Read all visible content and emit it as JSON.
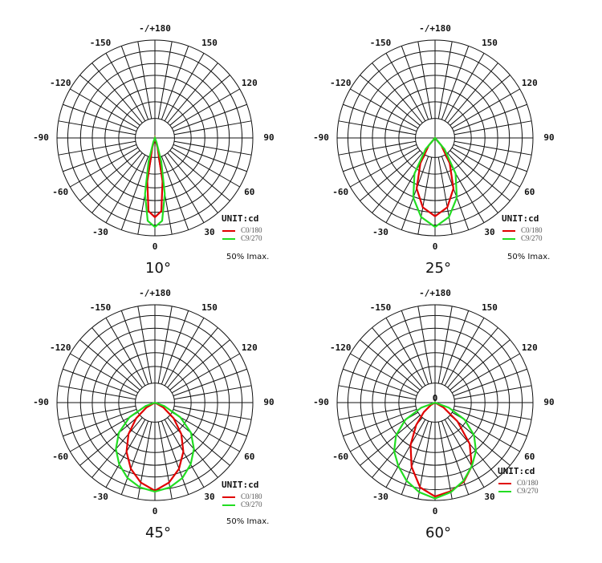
{
  "chart_data": [
    {
      "type": "polar",
      "caption": "10°",
      "unit_label": "UNIT:cd",
      "note": "50% Imax.",
      "angle_ticks": [
        {
          "value": 180,
          "label": "-/+180"
        },
        150,
        120,
        90,
        60,
        30,
        0,
        -30,
        -60,
        -90,
        -120,
        -150
      ],
      "rlim": [
        0,
        100
      ],
      "rticks": [
        20,
        37,
        51,
        64,
        76,
        89,
        100
      ],
      "grid": true,
      "theta": [
        -30,
        -20,
        -15,
        -10,
        -5,
        0,
        5,
        10,
        15,
        20,
        30
      ],
      "series": [
        {
          "name": "C0/180",
          "color": "#e00000",
          "values": [
            0,
            0,
            10,
            45,
            75,
            81,
            75,
            45,
            10,
            0,
            0
          ]
        },
        {
          "name": "C9/270",
          "color": "#22dd22",
          "values": [
            0,
            5,
            25,
            58,
            85,
            91,
            85,
            58,
            25,
            5,
            0
          ]
        }
      ]
    },
    {
      "type": "polar",
      "caption": "25°",
      "unit_label": "UNIT:cd",
      "note": "50% Imax.",
      "angle_ticks": [
        {
          "value": 180,
          "label": "-/+180"
        },
        150,
        120,
        90,
        60,
        30,
        0,
        -30,
        -60,
        -90,
        -120,
        -150
      ],
      "rlim": [
        0,
        100
      ],
      "rticks": [
        20,
        37,
        51,
        64,
        76,
        89,
        100
      ],
      "grid": true,
      "theta": [
        -50,
        -40,
        -30,
        -20,
        -10,
        0,
        10,
        20,
        30,
        40,
        50
      ],
      "series": [
        {
          "name": "C0/180",
          "color": "#e00000",
          "values": [
            0,
            10,
            30,
            55,
            72,
            80,
            72,
            55,
            30,
            10,
            0
          ]
        },
        {
          "name": "C9/270",
          "color": "#22dd22",
          "values": [
            0,
            15,
            42,
            65,
            82,
            91,
            82,
            65,
            42,
            15,
            0
          ]
        }
      ]
    },
    {
      "type": "polar",
      "caption": "45°",
      "unit_label": "UNIT:cd",
      "note": "50% Imax.",
      "angle_ticks": [
        {
          "value": 180,
          "label": "-/+180"
        },
        150,
        120,
        90,
        60,
        30,
        0,
        -30,
        -60,
        -90,
        -120,
        -150
      ],
      "rlim": [
        0,
        100
      ],
      "rticks": [
        20,
        37,
        51,
        64,
        76,
        89,
        100
      ],
      "grid": true,
      "theta": [
        -80,
        -70,
        -60,
        -50,
        -40,
        -30,
        -20,
        -10,
        0,
        10,
        20,
        30,
        40,
        50,
        60,
        70,
        80
      ],
      "series": [
        {
          "name": "C0/180",
          "color": "#e00000",
          "values": [
            0,
            0,
            10,
            25,
            42,
            58,
            72,
            83,
            90,
            83,
            72,
            58,
            42,
            25,
            10,
            0,
            0
          ]
        },
        {
          "name": "C9/270",
          "color": "#22dd22",
          "values": [
            0,
            10,
            30,
            48,
            62,
            73,
            82,
            88,
            91,
            88,
            82,
            73,
            62,
            48,
            30,
            10,
            0
          ]
        }
      ]
    },
    {
      "type": "polar",
      "caption": "60°",
      "unit_label": "UNIT:cd",
      "center_label": "0",
      "angle_ticks": [
        {
          "value": 180,
          "label": "-/+180"
        },
        150,
        120,
        90,
        60,
        30,
        0,
        -30,
        -60,
        -90,
        -120,
        -150
      ],
      "rlim": [
        0,
        100
      ],
      "rticks": [
        20,
        37,
        51,
        64,
        76,
        89,
        100
      ],
      "grid": true,
      "theta": [
        -80,
        -70,
        -60,
        -50,
        -40,
        -30,
        -20,
        -10,
        0,
        10,
        20,
        30,
        40,
        50,
        60,
        70,
        80
      ],
      "series": [
        {
          "name": "C0/180",
          "color": "#e00000",
          "values": [
            0,
            0,
            5,
            15,
            30,
            50,
            70,
            88,
            96,
            92,
            86,
            75,
            55,
            30,
            10,
            0,
            0
          ]
        },
        {
          "name": "C9/270",
          "color": "#22dd22",
          "values": [
            0,
            15,
            35,
            52,
            65,
            75,
            85,
            93,
            98,
            93,
            85,
            75,
            65,
            52,
            35,
            15,
            0
          ]
        }
      ]
    }
  ]
}
